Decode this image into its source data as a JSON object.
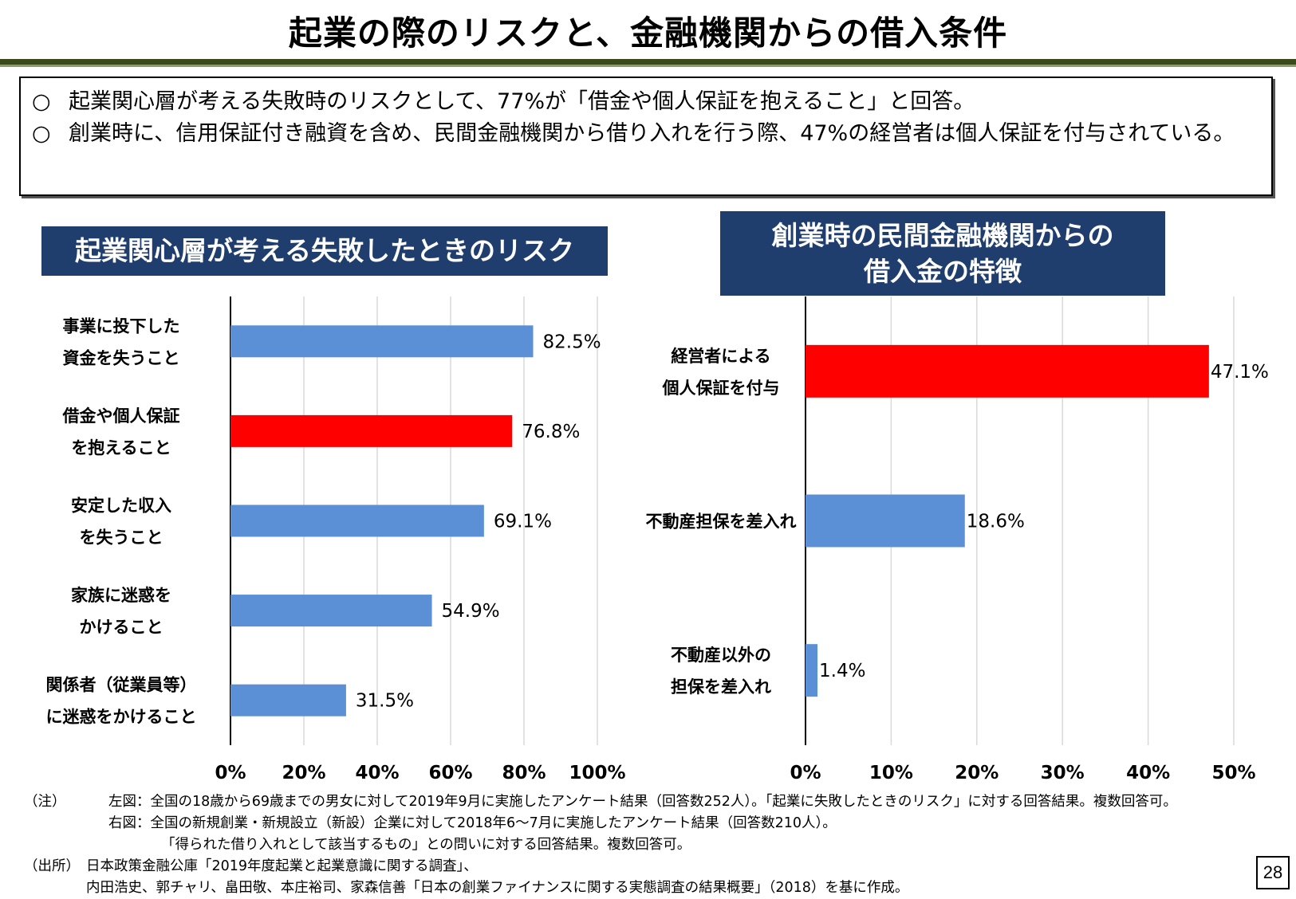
{
  "title": "起業の際のリスクと、金融機関からの借入条件",
  "summary": {
    "bullets": [
      {
        "mark": "○",
        "text": "起業関心層が考える失敗時のリスクとして、77%が「借金や個人保証を抱えること」と回答。"
      },
      {
        "mark": "○",
        "text": "創業時に、信用保証付き融資を含め、民間金融機関から借り入れを行う際、47%の経営者は個人保証を付与されている。"
      }
    ]
  },
  "colors": {
    "highlight": "#ff0000",
    "normal": "#5b8fd6",
    "header_bg": "#1f3e6e",
    "grid": "#d9d9d9"
  },
  "chart_data": [
    {
      "type": "bar",
      "orientation": "horizontal",
      "title": "起業関心層が考える失敗したときのリスク",
      "categories": [
        [
          "事業に投下した",
          "資金を失うこと"
        ],
        [
          "借金や個人保証",
          "を抱えること"
        ],
        [
          "安定した収入",
          "を失うこと"
        ],
        [
          "家族に迷惑を",
          "かけること"
        ],
        [
          "関係者（従業員等）",
          "に迷惑をかけること"
        ]
      ],
      "values": [
        82.5,
        76.8,
        69.1,
        54.9,
        31.5
      ],
      "value_labels": [
        "82.5%",
        "76.8%",
        "69.1%",
        "54.9%",
        "31.5%"
      ],
      "highlight_index": 1,
      "xlim": [
        0,
        100
      ],
      "xticks": [
        "0%",
        "20%",
        "40%",
        "60%",
        "80%",
        "100%"
      ],
      "grid": true
    },
    {
      "type": "bar",
      "orientation": "horizontal",
      "title": "創業時の民間金融機関からの\n借入金の特徴",
      "categories": [
        [
          "経営者による",
          "個人保証を付与"
        ],
        [
          "不動産担保を差入れ"
        ],
        [
          "不動産以外の",
          "担保を差入れ"
        ]
      ],
      "values": [
        47.1,
        18.6,
        1.4
      ],
      "value_labels": [
        "47.1%",
        "18.6%",
        "1.4%"
      ],
      "highlight_index": 0,
      "xlim": [
        0,
        50
      ],
      "xticks": [
        "0%",
        "10%",
        "20%",
        "30%",
        "40%",
        "50%"
      ],
      "grid": true
    }
  ],
  "notes": [
    {
      "key": "（注）",
      "label": "左図：",
      "text": "全国の18歳から69歳までの男女に対して2019年9月に実施したアンケート結果（回答数252人）。「起業に失敗したときのリスク」に対する回答結果。複数回答可。"
    },
    {
      "key": "",
      "label": "右図：",
      "text": "全国の新規創業・新規設立（新設）企業に対して2018年6～7月に実施したアンケート結果（回答数210人）。"
    },
    {
      "key": "",
      "label": "",
      "text": "「得られた借り入れとして該当するもの」との問いに対する回答結果。複数回答可。"
    },
    {
      "key": "（出所）",
      "label": "",
      "text": "日本政策金融公庫「2019年度起業と起業意識に関する調査」、"
    },
    {
      "key": "",
      "label": "",
      "text": "内田浩史、郭チャリ、畠田敬、本庄裕司、家森信善「日本の創業ファイナンスに関する実態調査の結果概要」（2018）を基に作成。"
    }
  ],
  "page_number": "28"
}
